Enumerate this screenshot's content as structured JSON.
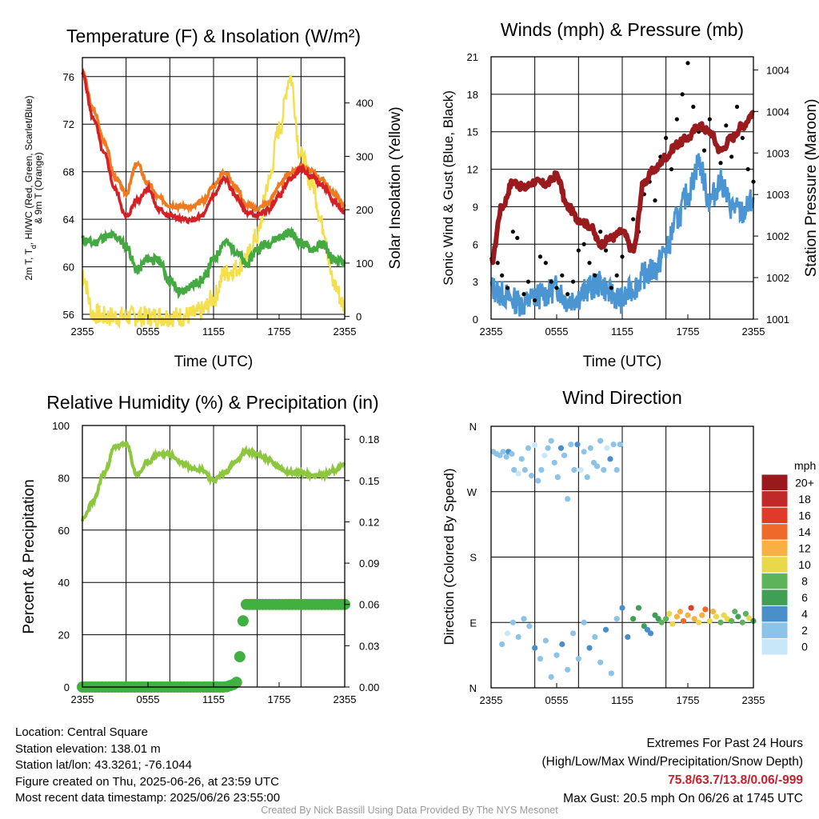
{
  "colors": {
    "air_temp": "#d42127",
    "heat_index": "#2ba02d",
    "temp_9m": "#f07a1f",
    "insolation": "#f4df4c",
    "dewpoint": "#43a940",
    "wind": "#4a95d2",
    "gust": "#000000",
    "pressure": "#991b1e",
    "rh": "#8dc63f",
    "precip": "#40b040"
  },
  "chart_data": [
    {
      "type": "line",
      "title": "Temperature (F) & Insolation (W/m²)",
      "xlabel": "Time (UTC)",
      "ylabel_lines": [
        "2m T, T",
        "d",
        ", HI/WC (Red, Green, Scarlet/Blue)",
        "& 9m T (Orange)"
      ],
      "y2label": "Solar Insolation (Yellow)",
      "x_ticks": [
        "2355",
        "0555",
        "1155",
        "1755",
        "2355"
      ],
      "ylim": [
        55.6,
        77.6
      ],
      "y_ticks": [
        56,
        60,
        64,
        68,
        72,
        76
      ],
      "y2lim": [
        -5,
        485
      ],
      "y2_ticks": [
        0,
        100,
        200,
        300,
        400
      ],
      "x": [
        0,
        1,
        2,
        3,
        4,
        5,
        6,
        7,
        8,
        9,
        10,
        11,
        12,
        13,
        14,
        15,
        16,
        17,
        18,
        19,
        20,
        21,
        22,
        23,
        24
      ],
      "series": [
        {
          "key": "temp_2m",
          "values": [
            76.2,
            72.5,
            69.5,
            66.5,
            64.2,
            65.6,
            66.6,
            64.8,
            64.3,
            64.0,
            63.9,
            64.3,
            66.0,
            67.4,
            66.0,
            64.6,
            64.3,
            64.8,
            66.0,
            67.4,
            68.2,
            67.6,
            66.8,
            65.5,
            64.6
          ]
        },
        {
          "key": "temp_9m",
          "values": [
            76.4,
            73.2,
            70.6,
            67.5,
            66.2,
            68.7,
            67.0,
            65.8,
            65.2,
            65.1,
            65.0,
            65.5,
            66.8,
            68.0,
            66.8,
            65.2,
            64.9,
            65.4,
            66.8,
            67.9,
            68.5,
            68.0,
            67.3,
            66.2,
            65.1
          ]
        },
        {
          "key": "dewpoint",
          "values": [
            62.3,
            62.0,
            62.5,
            62.6,
            61.8,
            59.7,
            60.7,
            60.5,
            58.8,
            57.8,
            58.5,
            58.9,
            60.6,
            62.1,
            61.4,
            60.2,
            61.5,
            62.0,
            62.5,
            62.9,
            62.0,
            61.5,
            61.9,
            60.5,
            60.3
          ]
        },
        {
          "key": "insolation",
          "values": [
            80,
            5,
            0,
            0,
            0,
            0,
            0,
            0,
            0,
            0,
            2,
            10,
            35,
            80,
            90,
            110,
            150,
            250,
            350,
            450,
            300,
            250,
            170,
            60,
            20
          ]
        }
      ]
    },
    {
      "type": "line",
      "title": "Winds (mph) & Pressure (mb)",
      "xlabel": "Time (UTC)",
      "ylabel": "Sonic Wind & Gust (Blue, Black)",
      "y2label": "Station Pressure (Maroon)",
      "x_ticks": [
        "2355",
        "0555",
        "1155",
        "1755",
        "2355"
      ],
      "ylim": [
        0,
        21
      ],
      "y_ticks": [
        0,
        3,
        6,
        9,
        12,
        15,
        18,
        21
      ],
      "y2_ticks": [
        "1001",
        "1002",
        "1002",
        "1003",
        "1003",
        "1004",
        "1004"
      ],
      "x": [
        0,
        1,
        2,
        3,
        4,
        5,
        6,
        7,
        8,
        9,
        10,
        11,
        12,
        13,
        14,
        15,
        16,
        17,
        18,
        19,
        20,
        21,
        22,
        23,
        24
      ],
      "series": [
        {
          "key": "sonic_wind",
          "values": [
            2.5,
            2.0,
            1.5,
            1.2,
            1.8,
            2.0,
            2.5,
            1.5,
            1.8,
            2.5,
            2.8,
            2.0,
            1.5,
            2.5,
            3.5,
            4.0,
            5.5,
            8.0,
            10.0,
            12.5,
            9.5,
            11.0,
            9.0,
            8.5,
            9.5
          ]
        },
        {
          "key": "pressure_axis_units",
          "values": [
            4.5,
            9.0,
            11.0,
            10.5,
            11.0,
            10.8,
            11.5,
            9.0,
            8.0,
            7.5,
            6.0,
            6.5,
            7.0,
            5.5,
            11.0,
            12.0,
            13.0,
            14.0,
            14.5,
            15.5,
            15.0,
            13.5,
            14.5,
            15.5,
            16.5
          ]
        }
      ],
      "gust_points": [
        [
          0.3,
          5.5
        ],
        [
          0.6,
          4.5
        ],
        [
          1,
          3.5
        ],
        [
          1.5,
          2.5
        ],
        [
          2,
          7
        ],
        [
          2.4,
          6.5
        ],
        [
          3,
          2
        ],
        [
          3.4,
          3
        ],
        [
          4,
          1.5
        ],
        [
          4.5,
          5
        ],
        [
          5,
          4.5
        ],
        [
          5.5,
          3
        ],
        [
          6,
          2.5
        ],
        [
          6.5,
          3.5
        ],
        [
          7,
          2
        ],
        [
          7.5,
          3
        ],
        [
          8,
          5.5
        ],
        [
          8.5,
          6
        ],
        [
          9,
          4.5
        ],
        [
          9.5,
          3.5
        ],
        [
          10,
          7
        ],
        [
          10.5,
          5.5
        ],
        [
          11,
          2.5
        ],
        [
          11.5,
          3.5
        ],
        [
          12,
          5
        ],
        [
          12.5,
          6.5
        ],
        [
          13,
          8
        ],
        [
          13.5,
          7
        ],
        [
          14,
          10
        ],
        [
          14.5,
          11
        ],
        [
          15,
          9.5
        ],
        [
          15.5,
          13
        ],
        [
          16,
          14.5
        ],
        [
          16.5,
          12
        ],
        [
          17,
          16
        ],
        [
          17.5,
          18
        ],
        [
          18,
          20.5
        ],
        [
          18.5,
          17
        ],
        [
          19,
          15
        ],
        [
          19.5,
          13.5
        ],
        [
          20,
          16
        ],
        [
          20.5,
          14
        ],
        [
          21,
          12.5
        ],
        [
          21.5,
          15.5
        ],
        [
          22,
          13
        ],
        [
          22.5,
          17
        ],
        [
          23,
          14.5
        ],
        [
          23.5,
          12
        ],
        [
          24,
          11
        ]
      ]
    },
    {
      "type": "line",
      "title": "Relative Humidity (%) & Precipitation (in)",
      "xlabel": "",
      "ylabel": "Percent & Precipitation",
      "x_ticks": [
        "2355",
        "0555",
        "1155",
        "1755",
        "2355"
      ],
      "ylim": [
        0,
        100
      ],
      "y_ticks": [
        0,
        20,
        40,
        60,
        80,
        100
      ],
      "y2lim": [
        0,
        0.19
      ],
      "y2_ticks": [
        "0.00",
        "0.03",
        "0.06",
        "0.09",
        "0.12",
        "0.15",
        "0.18"
      ],
      "x": [
        0,
        1,
        2,
        3,
        4,
        5,
        6,
        7,
        8,
        9,
        10,
        11,
        12,
        13,
        14,
        15,
        16,
        17,
        18,
        19,
        20,
        21,
        22,
        23,
        24
      ],
      "series": [
        {
          "key": "rh",
          "values": [
            64,
            71,
            82,
            92,
            93,
            81,
            86,
            89,
            89,
            86,
            84,
            83,
            79,
            82,
            86,
            90,
            89,
            87,
            84,
            82,
            82,
            81,
            81,
            83,
            85
          ]
        },
        {
          "key": "precip",
          "values": [
            0,
            0,
            0,
            0,
            0,
            0,
            0,
            0,
            0,
            0,
            0,
            0,
            0,
            0,
            0.002,
            0.06,
            0.06,
            0.06,
            0.06,
            0.06,
            0.06,
            0.06,
            0.06,
            0.06,
            0.06
          ]
        }
      ]
    },
    {
      "type": "scatter",
      "title": "Wind Direction",
      "ylabel": "Direction (Colored By Speed)",
      "x_ticks": [
        "2355",
        "0555",
        "1155",
        "1755",
        "2355"
      ],
      "y_ticks": [
        "N",
        "E",
        "S",
        "W",
        "N"
      ],
      "ylim": [
        0,
        360
      ],
      "colorbar_title": "mph",
      "colorbar_labels": [
        "0",
        "2",
        "4",
        "6",
        "8",
        "10",
        "12",
        "14",
        "16",
        "18",
        "20+"
      ],
      "colorbar_colors": [
        "#c8e8f8",
        "#8cc3e8",
        "#4a8fca",
        "#3fa055",
        "#5cb35a",
        "#e8d84a",
        "#f7b041",
        "#ef6a2a",
        "#e03a2a",
        "#c0282a",
        "#99191c"
      ],
      "points": [
        [
          0.2,
          325,
          2
        ],
        [
          0.5,
          322,
          1
        ],
        [
          0.8,
          320,
          2
        ],
        [
          1.1,
          325,
          1
        ],
        [
          1.4,
          318,
          2
        ],
        [
          1.6,
          325,
          3
        ],
        [
          1.9,
          322,
          1
        ],
        [
          2.1,
          300,
          1
        ],
        [
          2.5,
          295,
          0
        ],
        [
          2.8,
          315,
          1
        ],
        [
          3.1,
          300,
          2
        ],
        [
          3.4,
          330,
          1
        ],
        [
          3.7,
          292,
          2
        ],
        [
          4.0,
          334,
          0
        ],
        [
          4.3,
          285,
          1
        ],
        [
          4.6,
          300,
          2
        ],
        [
          4.9,
          320,
          0
        ],
        [
          5.2,
          330,
          1
        ],
        [
          5.5,
          340,
          2
        ],
        [
          5.8,
          310,
          2
        ],
        [
          6.1,
          290,
          1
        ],
        [
          6.4,
          330,
          3
        ],
        [
          6.7,
          320,
          2
        ],
        [
          7.0,
          260,
          2
        ],
        [
          7.3,
          335,
          1
        ],
        [
          7.6,
          300,
          1
        ],
        [
          7.9,
          335,
          3
        ],
        [
          8.2,
          300,
          0
        ],
        [
          8.5,
          325,
          1
        ],
        [
          8.8,
          290,
          2
        ],
        [
          9.1,
          330,
          1
        ],
        [
          9.4,
          310,
          2
        ],
        [
          9.7,
          305,
          1
        ],
        [
          10.0,
          340,
          2
        ],
        [
          10.3,
          300,
          1
        ],
        [
          10.6,
          330,
          0
        ],
        [
          10.9,
          315,
          3
        ],
        [
          11.2,
          335,
          2
        ],
        [
          11.5,
          300,
          1
        ],
        [
          11.8,
          335,
          1
        ],
        [
          1.0,
          60,
          1
        ],
        [
          1.5,
          75,
          0
        ],
        [
          2.0,
          90,
          2
        ],
        [
          2.5,
          70,
          1
        ],
        [
          3.0,
          95,
          1
        ],
        [
          3.5,
          85,
          2
        ],
        [
          4.0,
          55,
          3
        ],
        [
          4.5,
          40,
          2
        ],
        [
          5.0,
          65,
          1
        ],
        [
          5.5,
          15,
          1
        ],
        [
          6.0,
          45,
          2
        ],
        [
          6.5,
          60,
          3
        ],
        [
          7.0,
          25,
          2
        ],
        [
          7.5,
          75,
          1
        ],
        [
          8.0,
          40,
          1
        ],
        [
          8.5,
          90,
          2
        ],
        [
          9.0,
          55,
          3
        ],
        [
          9.5,
          70,
          1
        ],
        [
          10.0,
          35,
          2
        ],
        [
          10.5,
          80,
          3
        ],
        [
          11.0,
          20,
          2
        ],
        [
          11.5,
          95,
          1
        ],
        [
          12.0,
          110,
          3
        ],
        [
          12.5,
          70,
          4
        ],
        [
          13.0,
          95,
          5
        ],
        [
          13.5,
          110,
          6
        ],
        [
          14.0,
          85,
          5
        ],
        [
          14.3,
          80,
          3
        ],
        [
          14.6,
          75,
          4
        ],
        [
          15.0,
          100,
          6
        ],
        [
          15.3,
          95,
          5
        ],
        [
          15.6,
          90,
          7
        ],
        [
          16.0,
          95,
          8
        ],
        [
          16.3,
          102,
          9
        ],
        [
          16.6,
          88,
          10
        ],
        [
          17.0,
          98,
          11
        ],
        [
          17.3,
          105,
          12
        ],
        [
          17.6,
          92,
          13
        ],
        [
          18.0,
          100,
          12
        ],
        [
          18.3,
          110,
          15
        ],
        [
          18.6,
          95,
          11
        ],
        [
          19.0,
          90,
          10
        ],
        [
          19.3,
          100,
          12
        ],
        [
          19.6,
          108,
          13
        ],
        [
          20.0,
          92,
          9
        ],
        [
          20.3,
          105,
          11
        ],
        [
          20.6,
          98,
          10
        ],
        [
          21.0,
          90,
          8
        ],
        [
          21.3,
          100,
          9
        ],
        [
          21.6,
          95,
          10
        ],
        [
          22.0,
          92,
          8
        ],
        [
          22.3,
          105,
          7
        ],
        [
          22.6,
          98,
          6
        ],
        [
          23.0,
          90,
          8
        ],
        [
          23.3,
          102,
          7
        ],
        [
          23.6,
          96,
          9
        ],
        [
          24.0,
          92,
          6
        ]
      ]
    }
  ],
  "info": {
    "location": "Location: Central Square",
    "elevation": "Station elevation: 138.01 m",
    "latlon": "Station lat/lon: 43.3261; -76.1044",
    "created": "Figure created on Thu, 2025-06-26, at 23:59 UTC",
    "recent": "Most recent data timestamp: 2025/06/26 23:55:00"
  },
  "extremes": {
    "title": "Extremes For Past 24 Hours",
    "subtitle": "(High/Low/Max Wind/Precipitation/Snow Depth)",
    "values": "75.8/63.7/13.8/0.06/-999",
    "gust": "Max Gust: 20.5 mph On 06/26 at 1745 UTC"
  },
  "footer": "Created By Nick Bassill Using Data Provided By The NYS Mesonet"
}
